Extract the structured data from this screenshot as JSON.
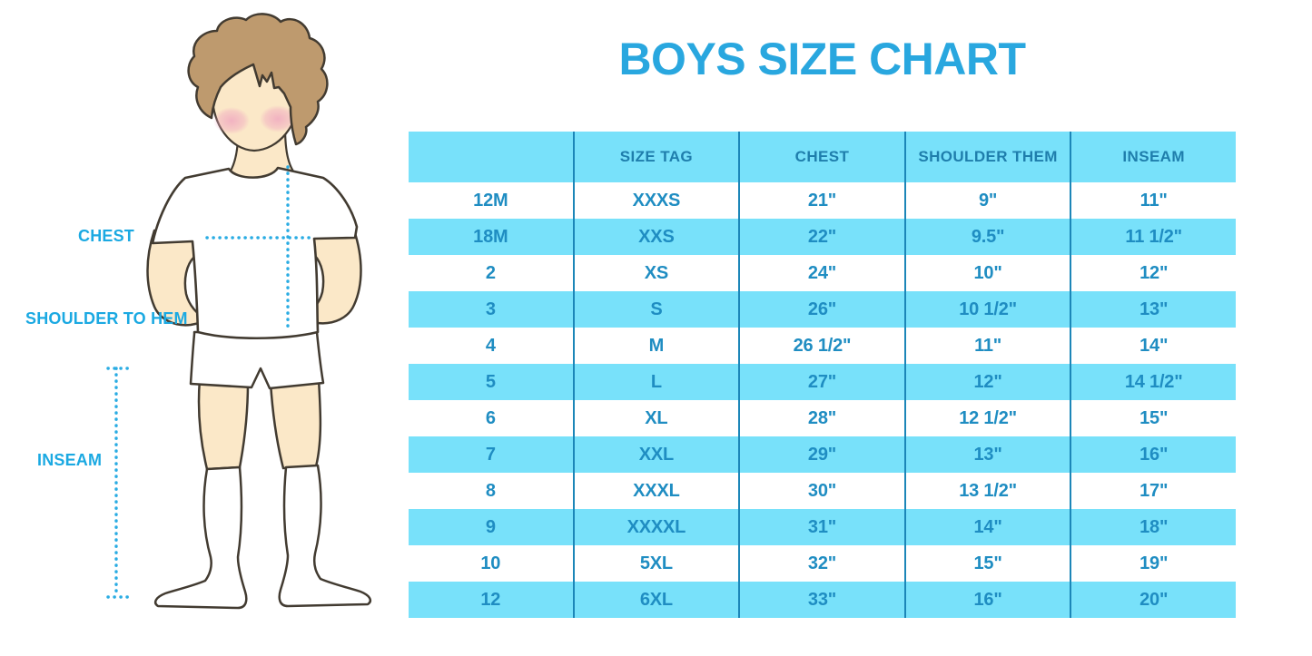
{
  "title": "BOYS SIZE CHART",
  "figure_labels": {
    "chest": "CHEST",
    "shoulder_to_hem": "SHOULDER TO HEM",
    "inseam": "INSEAM"
  },
  "colors": {
    "title_blue": "#29A7DF",
    "label_blue": "#1BA9E2",
    "row_cyan": "#78E1FA",
    "divider_blue": "#1C86B8",
    "header_text": "#1F7EAC",
    "cell_text": "#1F8DC2",
    "dotted_measure_line": "#2AACE3",
    "hair_brown": "#BE9A6E",
    "skin": "#FBE8C8",
    "cheek_pink": "#F0A9C0",
    "outline": "#423B31"
  },
  "chart_data": {
    "type": "table",
    "title": "BOYS SIZE CHART",
    "columns": [
      "",
      "SIZE TAG",
      "CHEST",
      "SHOULDER THEM",
      "INSEAM"
    ],
    "rows": [
      [
        "12M",
        "XXXS",
        "21\"",
        "9\"",
        "11\""
      ],
      [
        "18M",
        "XXS",
        "22\"",
        "9.5\"",
        "11 1/2\""
      ],
      [
        "2",
        "XS",
        "24\"",
        "10\"",
        "12\""
      ],
      [
        "3",
        "S",
        "26\"",
        "10 1/2\"",
        "13\""
      ],
      [
        "4",
        "M",
        "26 1/2\"",
        "11\"",
        "14\""
      ],
      [
        "5",
        "L",
        "27\"",
        "12\"",
        "14 1/2\""
      ],
      [
        "6",
        "XL",
        "28\"",
        "12 1/2\"",
        "15\""
      ],
      [
        "7",
        "XXL",
        "29\"",
        "13\"",
        "16\""
      ],
      [
        "8",
        "XXXL",
        "30\"",
        "13 1/2\"",
        "17\""
      ],
      [
        "9",
        "XXXXL",
        "31\"",
        "14\"",
        "18\""
      ],
      [
        "10",
        "5XL",
        "32\"",
        "15\"",
        "19\""
      ],
      [
        "12",
        "6XL",
        "33\"",
        "16\"",
        "20\""
      ]
    ]
  }
}
